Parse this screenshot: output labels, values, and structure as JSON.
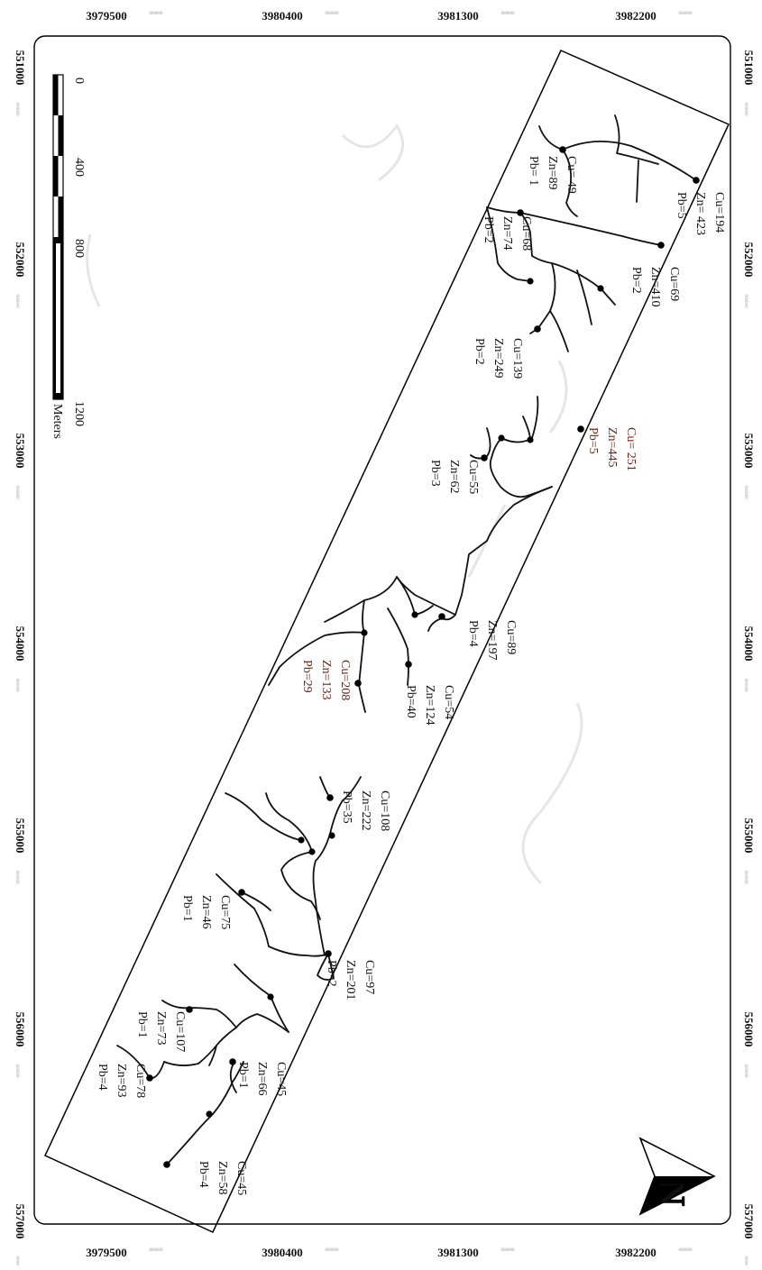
{
  "map": {
    "northing_ticks": [
      "551000",
      "552000",
      "553000",
      "554000",
      "555000",
      "556000",
      "557000"
    ],
    "easting_ticks": [
      "3979500",
      "3980400",
      "3981300",
      "3982200"
    ],
    "tick_suffix": "000000"
  },
  "scale_bar": {
    "labels": [
      "0",
      "400",
      "800",
      "1200"
    ],
    "unit": "Meters"
  },
  "north_arrow": {
    "label": "N"
  },
  "samples": [
    {
      "cu": "Cu=194",
      "zn": "Zn= 423",
      "pb": "Pb=5",
      "highlight": false
    },
    {
      "cu": "Cu= 49",
      "zn": "Zn=89",
      "pb": "Pb= 1",
      "highlight": false
    },
    {
      "cu": "Cu=69",
      "zn": "Zn=410",
      "pb": "Pb=2",
      "highlight": false
    },
    {
      "cu": "Cu=68",
      "zn": "Zn=74",
      "pb": "Pb=2",
      "highlight": false
    },
    {
      "cu": "Cu=139",
      "zn": "Zn=249",
      "pb": "Pb=2",
      "highlight": false
    },
    {
      "cu": "Cu= 251",
      "zn": "Zn=445",
      "pb": "Pb=5",
      "highlight": true
    },
    {
      "cu": "Cu=55",
      "zn": "Zn=62",
      "pb": "Pb=3",
      "highlight": false
    },
    {
      "cu": "Cu=89",
      "zn": "Zn=197",
      "pb": "Pb=4",
      "highlight": false
    },
    {
      "cu": "Cu=208",
      "zn": "Zn=133",
      "pb": "Pb=29",
      "highlight": true
    },
    {
      "cu": "Cu=54",
      "zn": "Zn=124",
      "pb": "Pb=40",
      "highlight": false
    },
    {
      "cu": "Cu=108",
      "zn": "Zn=222",
      "pb": "Pb=35",
      "highlight": false
    },
    {
      "cu": "Cu=75",
      "zn": "Zn=46",
      "pb": "Pb=1",
      "highlight": false
    },
    {
      "cu": "Cu=97",
      "zn": "Zn=201",
      "pb": "Pb=2",
      "highlight": false
    },
    {
      "cu": "Cu=107",
      "zn": "Zn=73",
      "pb": "Pb=1",
      "highlight": false
    },
    {
      "cu": "Cu=45",
      "zn": "Zn=66",
      "pb": "Pb=1",
      "highlight": false
    },
    {
      "cu": "Cu=78",
      "zn": "Zn=93",
      "pb": "Pb=4",
      "highlight": false
    },
    {
      "cu": "Cu=45",
      "zn": "Zn=58",
      "pb": "Pb=4",
      "highlight": false
    }
  ]
}
